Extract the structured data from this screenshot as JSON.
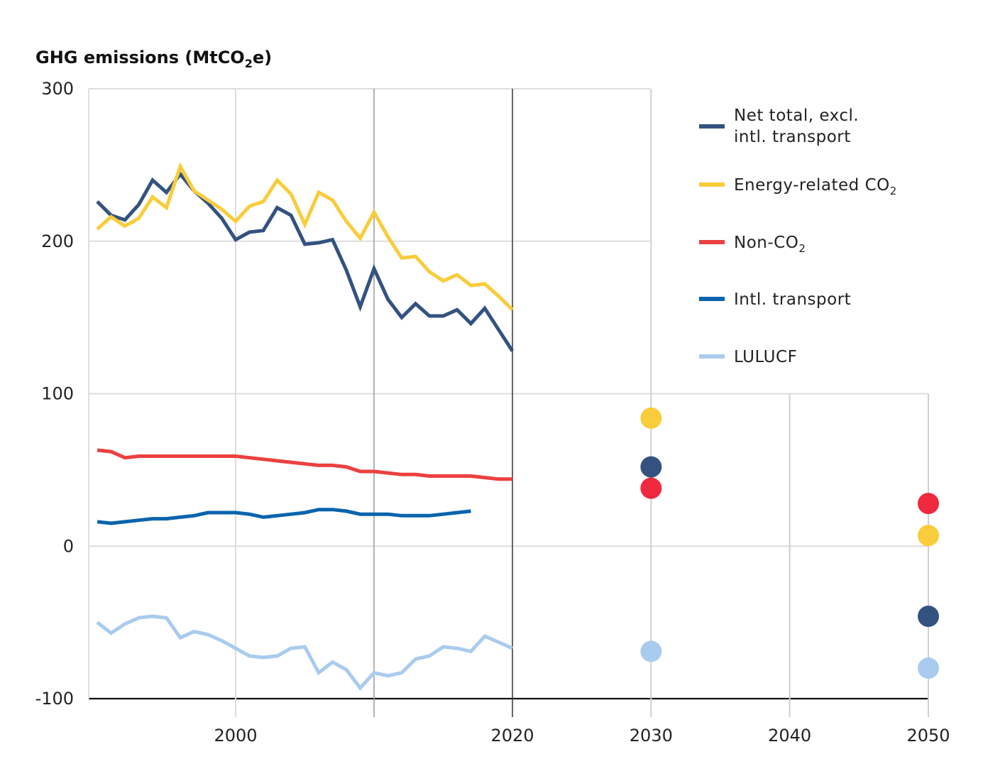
{
  "chart_data": {
    "type": "line",
    "ylabel": {
      "pre": "GHG emissions (MtCO",
      "sub": "2",
      "post": "e)"
    },
    "ylim": [
      -100,
      300
    ],
    "yticks": [
      {
        "value": 300,
        "label": "300"
      },
      {
        "value": 200,
        "label": "200"
      },
      {
        "value": 100,
        "label": "100"
      },
      {
        "value": 0,
        "label": "0"
      },
      {
        "value": -100,
        "label": "-100"
      }
    ],
    "xticks": [
      {
        "value": 2000,
        "label": "2000"
      },
      {
        "value": 2020,
        "label": "2020"
      },
      {
        "value": 2030,
        "label": "2030"
      },
      {
        "value": 2040,
        "label": "2040"
      },
      {
        "value": 2050,
        "label": "2050"
      }
    ],
    "series": [
      {
        "id": "net",
        "color": "#34527f",
        "legend": {
          "line1": "Net total, excl.",
          "line2": "intl. transport"
        },
        "x": [
          1990,
          1991,
          1992,
          1993,
          1994,
          1995,
          1996,
          1997,
          1998,
          1999,
          2000,
          2001,
          2002,
          2003,
          2004,
          2005,
          2006,
          2007,
          2008,
          2009,
          2010,
          2011,
          2012,
          2013,
          2014,
          2015,
          2016,
          2017,
          2018,
          2019,
          2020
        ],
        "values": [
          226,
          217,
          214,
          224,
          240,
          232,
          244,
          233,
          225,
          215,
          201,
          206,
          207,
          222,
          217,
          198,
          199,
          201,
          181,
          157,
          182,
          162,
          150,
          159,
          151,
          151,
          155,
          146,
          156,
          142,
          128
        ],
        "targets": [
          {
            "year": 2030,
            "value": 52
          },
          {
            "year": 2050,
            "value": -46
          }
        ]
      },
      {
        "id": "energy",
        "color": "#f9cc3b",
        "legend": {
          "pre": "Energy-related CO",
          "sub": "2"
        },
        "x": [
          1990,
          1991,
          1992,
          1993,
          1994,
          1995,
          1996,
          1997,
          1998,
          1999,
          2000,
          2001,
          2002,
          2003,
          2004,
          2005,
          2006,
          2007,
          2008,
          2009,
          2010,
          2011,
          2012,
          2013,
          2014,
          2015,
          2016,
          2017,
          2018,
          2019,
          2020
        ],
        "values": [
          208,
          216,
          210,
          215,
          229,
          222,
          249,
          233,
          227,
          221,
          213,
          223,
          226,
          240,
          231,
          211,
          232,
          227,
          213,
          202,
          219,
          203,
          189,
          190,
          180,
          174,
          178,
          171,
          172,
          164,
          155
        ],
        "targets": [
          {
            "year": 2030,
            "value": 84
          },
          {
            "year": 2050,
            "value": 7
          }
        ]
      },
      {
        "id": "nonco2",
        "color": "#ec4040",
        "marker_color": "#f0293f",
        "legend": {
          "pre": "Non-CO",
          "sub": "2"
        },
        "x": [
          1990,
          1991,
          1992,
          1993,
          1994,
          1995,
          1996,
          1997,
          1998,
          1999,
          2000,
          2001,
          2002,
          2003,
          2004,
          2005,
          2006,
          2007,
          2008,
          2009,
          2010,
          2011,
          2012,
          2013,
          2014,
          2015,
          2016,
          2017,
          2018,
          2019,
          2020
        ],
        "values": [
          63,
          62,
          58,
          59,
          59,
          59,
          59,
          59,
          59,
          59,
          59,
          58,
          57,
          56,
          55,
          54,
          53,
          53,
          52,
          49,
          49,
          48,
          47,
          47,
          46,
          46,
          46,
          46,
          45,
          44,
          44
        ],
        "targets": [
          {
            "year": 2030,
            "value": 38
          },
          {
            "year": 2050,
            "value": 28
          }
        ]
      },
      {
        "id": "intl",
        "color": "#0a64ad",
        "legend": {
          "text": "Intl. transport"
        },
        "x": [
          1990,
          1991,
          1992,
          1993,
          1994,
          1995,
          1996,
          1997,
          1998,
          1999,
          2000,
          2001,
          2002,
          2003,
          2004,
          2005,
          2006,
          2007,
          2008,
          2009,
          2010,
          2011,
          2012,
          2013,
          2014,
          2015,
          2016,
          2017
        ],
        "values": [
          16,
          15,
          16,
          17,
          18,
          18,
          19,
          20,
          22,
          22,
          22,
          21,
          19,
          20,
          21,
          22,
          24,
          24,
          23,
          21,
          21,
          21,
          20,
          20,
          20,
          21,
          22,
          23
        ],
        "targets": []
      },
      {
        "id": "lulucf",
        "color": "#a9cbee",
        "legend": {
          "text": "LULUCF"
        },
        "x": [
          1990,
          1991,
          1992,
          1993,
          1994,
          1995,
          1996,
          1997,
          1998,
          1999,
          2000,
          2001,
          2002,
          2003,
          2004,
          2005,
          2006,
          2007,
          2008,
          2009,
          2010,
          2011,
          2012,
          2013,
          2014,
          2015,
          2016,
          2017,
          2018,
          2019,
          2020
        ],
        "values": [
          -50,
          -57,
          -51,
          -47,
          -46,
          -47,
          -60,
          -56,
          -58,
          -62,
          -67,
          -72,
          -73,
          -72,
          -67,
          -66,
          -83,
          -76,
          -81,
          -93,
          -83,
          -85,
          -83,
          -74,
          -72,
          -66,
          -67,
          -69,
          -59,
          -63,
          -67
        ],
        "targets": [
          {
            "year": 2030,
            "value": -69
          },
          {
            "year": 2050,
            "value": -80
          }
        ]
      }
    ],
    "legend_placement": "top-right",
    "grid": true
  }
}
